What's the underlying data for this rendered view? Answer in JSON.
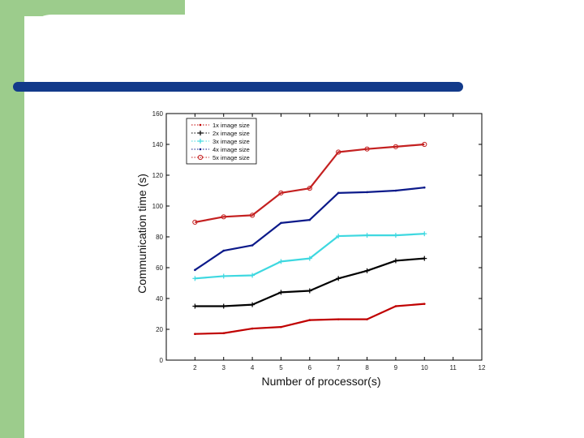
{
  "theme": {
    "sidebar_color": "#9ccc8c",
    "title_bar_color": "#123a8a"
  },
  "chart_data": {
    "type": "line",
    "xlabel": "Number of processor(s)",
    "ylabel": "Communication time (s)",
    "xlim": [
      1,
      12
    ],
    "ylim": [
      0,
      160
    ],
    "xticks": [
      2,
      3,
      4,
      5,
      6,
      7,
      8,
      9,
      10,
      11,
      12
    ],
    "yticks": [
      0,
      20,
      40,
      60,
      80,
      100,
      120,
      140,
      160
    ],
    "grid": false,
    "legend_position": "top-left",
    "x": [
      2,
      3,
      4,
      5,
      6,
      7,
      8,
      9,
      10
    ],
    "series": [
      {
        "name": "1x image size",
        "color": "#c00000",
        "marker": "dot",
        "values": [
          17,
          17.5,
          20.5,
          21.5,
          26,
          26.5,
          26.5,
          35,
          36.5
        ]
      },
      {
        "name": "2x image size",
        "color": "#000000",
        "marker": "plus",
        "values": [
          35,
          35,
          36,
          44,
          45,
          53,
          58,
          64.5,
          66
        ]
      },
      {
        "name": "3x image size",
        "color": "#3ed8e0",
        "marker": "plus",
        "values": [
          53,
          54.5,
          55,
          64,
          66,
          80.5,
          81,
          81,
          82
        ]
      },
      {
        "name": "4x image size",
        "color": "#0c1a8a",
        "marker": "dot",
        "values": [
          58.5,
          71,
          74.5,
          89,
          91,
          108.5,
          109,
          110,
          112
        ]
      },
      {
        "name": "5x image size",
        "color": "#c42020",
        "marker": "circle",
        "values": [
          89.5,
          93,
          94,
          108.5,
          111.5,
          135,
          137,
          138.5,
          140
        ]
      }
    ]
  }
}
